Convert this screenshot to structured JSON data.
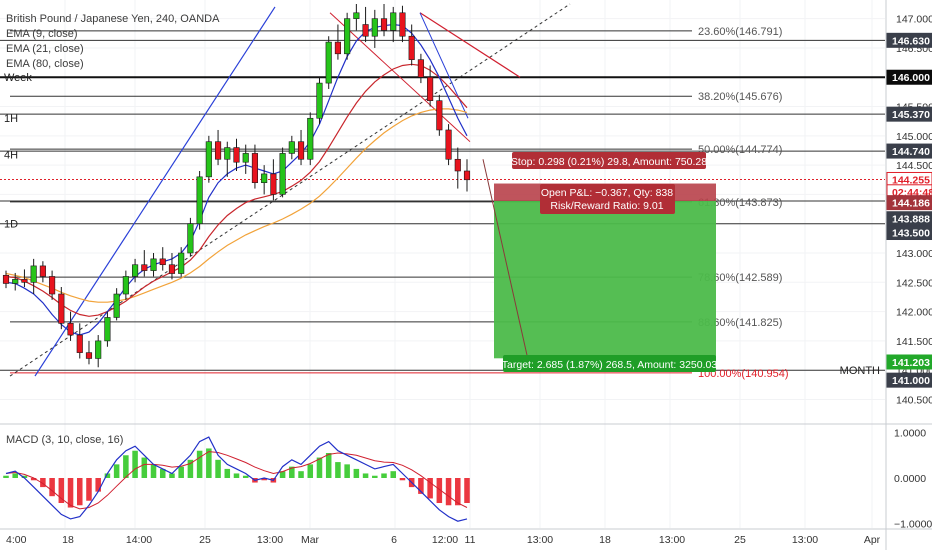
{
  "legend": {
    "title": "British Pound / Japanese Yen, 240, OANDA",
    "ema1": "EMA (9, close)",
    "ema2": "EMA (21, close)",
    "ema3": "EMA (80, close)"
  },
  "colors": {
    "up": "#26c41a",
    "down": "#e8141e",
    "ema9": "#2130c8",
    "ema21": "#c8262c",
    "ema80": "#f2a33a",
    "target_fill": "#4cbb4a",
    "stop_fill": "#b8414a"
  },
  "level_labels": [
    {
      "label": "Week",
      "price": 145.9
    },
    {
      "label": "1H",
      "price": 145.2
    },
    {
      "label": "4H",
      "price": 144.58
    },
    {
      "label": "1D",
      "price": 143.4
    },
    {
      "label": "MONTH",
      "price": 140.9
    }
  ],
  "fib_levels": [
    {
      "label": "23.60%(146.791)",
      "price": 146.791
    },
    {
      "label": "38.20%(145.676)",
      "price": 145.676
    },
    {
      "label": "50.00%(144.774)",
      "price": 144.774
    },
    {
      "label": "61.80%(143.873)",
      "price": 143.873
    },
    {
      "label": "78.60%(142.589)",
      "price": 142.589
    },
    {
      "label": "88.60%(141.825)",
      "price": 141.825
    },
    {
      "label": "100.00%(140.954)",
      "price": 140.954
    }
  ],
  "position": {
    "stop_label": "Stop: 0.298 (0.21%) 29.8, Amount: 750.28",
    "pnl_label": "Open P&L: −0.367, Qty: 838",
    "rr_label": "Risk/Reward Ratio: 9.01",
    "target_label": "Target: 2.685 (1.87%) 268.5, Amount: 3250.03",
    "entry": 143.888,
    "stop": 144.186,
    "target": 141.203
  },
  "macd": {
    "label": "MACD (3, 10, close, 16)"
  },
  "price_axis": {
    "ticks": [
      "147.000",
      "146.500",
      "146.000",
      "145.500",
      "145.000",
      "144.500",
      "144.000",
      "143.500",
      "143.000",
      "142.500",
      "142.000",
      "141.500",
      "141.000",
      "140.500"
    ],
    "tick_values": [
      147.0,
      146.5,
      146.0,
      145.5,
      145.0,
      144.5,
      144.0,
      143.5,
      143.0,
      142.5,
      142.0,
      141.5,
      141.0,
      140.5
    ],
    "tags": [
      {
        "text": "146.630",
        "price": 146.63,
        "bg": "#3a3f4a",
        "fg": "#ffffff"
      },
      {
        "text": "146.000",
        "price": 146.0,
        "bg": "#0b0b0b",
        "fg": "#ffffff"
      },
      {
        "text": "145.370",
        "price": 145.37,
        "bg": "#3a3f4a",
        "fg": "#ffffff"
      },
      {
        "text": "144.740",
        "price": 144.74,
        "bg": "#3a3f4a",
        "fg": "#ffffff"
      },
      {
        "text": "144.255",
        "price": 144.255,
        "bg": "#ffffff",
        "fg": "#e0202a",
        "border": "#e0202a"
      },
      {
        "text": "02:44:48",
        "price": 144.045,
        "bg": "#ffffff",
        "fg": "#e0202a",
        "border": "#e0202a"
      },
      {
        "text": "144.186",
        "price": 143.86,
        "bg": "#a3333b",
        "fg": "#ffffff"
      },
      {
        "text": "143.888",
        "price": 143.585,
        "bg": "#3a3f4a",
        "fg": "#ffffff"
      },
      {
        "text": "143.500",
        "price": 143.35,
        "bg": "#3a3f4a",
        "fg": "#ffffff"
      },
      {
        "text": "141.203",
        "price": 141.14,
        "bg": "#22a82a",
        "fg": "#ffffff"
      },
      {
        "text": "141.000",
        "price": 140.83,
        "bg": "#3a3f4a",
        "fg": "#ffffff"
      }
    ]
  },
  "macd_axis": {
    "ticks": [
      "1.0000",
      "0.0000",
      "−1.0000"
    ],
    "tick_values": [
      1.0,
      0.0,
      -1.0
    ]
  },
  "time_axis": {
    "labels": [
      "4:00",
      "18",
      "14:00",
      "25",
      "13:00",
      "Mar",
      "6",
      "12:00",
      "11",
      "13:00",
      "18",
      "13:00",
      "25",
      "13:00",
      "Apr"
    ]
  },
  "chart_data": {
    "type": "candlestick",
    "title": "British Pound / Japanese Yen, 240, OANDA",
    "price_range": [
      140.15,
      147.25
    ],
    "macd_range": [
      -1.1,
      1.1
    ],
    "candles": [
      [
        142.62,
        142.7,
        142.4,
        142.48
      ],
      [
        142.48,
        142.66,
        142.36,
        142.55
      ],
      [
        142.55,
        142.72,
        142.42,
        142.5
      ],
      [
        142.5,
        142.9,
        142.3,
        142.78
      ],
      [
        142.78,
        142.86,
        142.5,
        142.6
      ],
      [
        142.6,
        142.7,
        142.2,
        142.3
      ],
      [
        142.3,
        142.42,
        141.7,
        141.8
      ],
      [
        141.8,
        142.0,
        141.5,
        141.6
      ],
      [
        141.6,
        141.8,
        141.2,
        141.3
      ],
      [
        141.3,
        141.5,
        141.1,
        141.2
      ],
      [
        141.2,
        141.6,
        141.05,
        141.5
      ],
      [
        141.5,
        142.0,
        141.4,
        141.9
      ],
      [
        141.9,
        142.4,
        141.85,
        142.3
      ],
      [
        142.3,
        142.7,
        142.2,
        142.6
      ],
      [
        142.6,
        142.9,
        142.5,
        142.8
      ],
      [
        142.8,
        143.05,
        142.6,
        142.7
      ],
      [
        142.7,
        143.0,
        142.6,
        142.9
      ],
      [
        142.9,
        143.1,
        142.7,
        142.8
      ],
      [
        142.8,
        143.0,
        142.55,
        142.65
      ],
      [
        142.65,
        143.1,
        142.6,
        143.0
      ],
      [
        143.0,
        143.6,
        142.95,
        143.5
      ],
      [
        143.5,
        144.4,
        143.4,
        144.3
      ],
      [
        144.3,
        145.0,
        144.2,
        144.9
      ],
      [
        144.9,
        145.1,
        144.5,
        144.6
      ],
      [
        144.6,
        144.9,
        144.3,
        144.8
      ],
      [
        144.8,
        144.95,
        144.4,
        144.55
      ],
      [
        144.55,
        144.85,
        144.35,
        144.7
      ],
      [
        144.7,
        144.85,
        144.1,
        144.2
      ],
      [
        144.2,
        144.5,
        144.0,
        144.35
      ],
      [
        144.35,
        144.6,
        143.9,
        144.0
      ],
      [
        144.0,
        144.8,
        143.95,
        144.7
      ],
      [
        144.7,
        145.0,
        144.6,
        144.9
      ],
      [
        144.9,
        145.1,
        144.5,
        144.6
      ],
      [
        144.6,
        145.4,
        144.5,
        145.3
      ],
      [
        145.3,
        146.0,
        145.2,
        145.9
      ],
      [
        145.9,
        146.7,
        145.8,
        146.6
      ],
      [
        146.6,
        146.9,
        146.3,
        146.4
      ],
      [
        146.4,
        147.1,
        146.3,
        147.0
      ],
      [
        147.0,
        147.25,
        146.8,
        147.1
      ],
      [
        146.9,
        147.2,
        146.6,
        146.7
      ],
      [
        146.7,
        147.15,
        146.5,
        147.0
      ],
      [
        147.0,
        147.25,
        146.7,
        146.8
      ],
      [
        146.8,
        147.2,
        146.6,
        147.1
      ],
      [
        147.1,
        147.22,
        146.6,
        146.7
      ],
      [
        146.7,
        146.9,
        146.2,
        146.3
      ],
      [
        146.3,
        146.4,
        145.9,
        146.0
      ],
      [
        146.0,
        146.2,
        145.5,
        145.6
      ],
      [
        145.6,
        145.7,
        145.0,
        145.1
      ],
      [
        145.1,
        145.2,
        144.5,
        144.6
      ],
      [
        144.6,
        144.8,
        144.1,
        144.4
      ],
      [
        144.4,
        144.6,
        144.05,
        144.25
      ]
    ],
    "ema9": [
      142.5,
      142.48,
      142.4,
      142.3,
      142.15,
      141.95,
      141.78,
      141.65,
      141.6,
      141.65,
      141.8,
      142.0,
      142.2,
      142.42,
      142.6,
      142.72,
      142.8,
      142.85,
      142.9,
      143.0,
      143.2,
      143.55,
      143.95,
      144.2,
      144.35,
      144.45,
      144.5,
      144.45,
      144.4,
      144.35,
      144.4,
      144.55,
      144.7,
      144.9,
      145.2,
      145.6,
      146.0,
      146.35,
      146.62,
      146.78,
      146.85,
      146.88,
      146.9,
      146.88,
      146.75,
      146.55,
      146.3,
      146.0,
      145.65,
      145.3,
      145.0
    ],
    "ema21": [
      142.6,
      142.58,
      142.52,
      142.44,
      142.35,
      142.24,
      142.12,
      142.02,
      141.95,
      141.92,
      141.94,
      142.0,
      142.08,
      142.18,
      142.3,
      142.42,
      142.52,
      142.6,
      142.68,
      142.76,
      142.88,
      143.05,
      143.28,
      143.48,
      143.64,
      143.76,
      143.86,
      143.92,
      143.96,
      144.0,
      144.05,
      144.14,
      144.24,
      144.38,
      144.56,
      144.8,
      145.06,
      145.32,
      145.56,
      145.76,
      145.92,
      146.04,
      146.14,
      146.2,
      146.22,
      146.2,
      146.12,
      146.0,
      145.84,
      145.66,
      145.48
    ],
    "ema80": [
      142.65,
      142.62,
      142.58,
      142.52,
      142.46,
      142.4,
      142.33,
      142.27,
      142.22,
      142.18,
      142.16,
      142.16,
      142.18,
      142.21,
      142.26,
      142.32,
      142.38,
      142.44,
      142.5,
      142.57,
      142.66,
      142.77,
      142.9,
      143.02,
      143.13,
      143.22,
      143.31,
      143.38,
      143.45,
      143.51,
      143.58,
      143.66,
      143.75,
      143.85,
      143.97,
      144.12,
      144.28,
      144.45,
      144.62,
      144.78,
      144.92,
      145.05,
      145.16,
      145.26,
      145.34,
      145.4,
      145.44,
      145.46,
      145.46,
      145.44,
      145.4
    ],
    "macd_hist": [
      0.05,
      0.1,
      0.05,
      -0.05,
      -0.2,
      -0.4,
      -0.55,
      -0.65,
      -0.6,
      -0.5,
      -0.3,
      0.1,
      0.3,
      0.5,
      0.6,
      0.45,
      0.3,
      0.2,
      0.1,
      0.25,
      0.4,
      0.6,
      0.65,
      0.4,
      0.2,
      0.1,
      0.05,
      -0.1,
      -0.05,
      -0.1,
      0.15,
      0.25,
      0.15,
      0.3,
      0.45,
      0.55,
      0.35,
      0.3,
      0.2,
      0.1,
      0.05,
      0.1,
      0.15,
      -0.05,
      -0.2,
      -0.35,
      -0.45,
      -0.55,
      -0.6,
      -0.6,
      -0.55
    ],
    "macd_line": [
      0.1,
      0.15,
      0.0,
      -0.2,
      -0.4,
      -0.6,
      -0.8,
      -0.9,
      -0.85,
      -0.6,
      -0.3,
      0.1,
      0.4,
      0.6,
      0.7,
      0.5,
      0.3,
      0.2,
      0.1,
      0.3,
      0.5,
      0.8,
      0.9,
      0.5,
      0.3,
      0.2,
      0.1,
      -0.05,
      0.0,
      -0.05,
      0.25,
      0.4,
      0.3,
      0.5,
      0.7,
      0.8,
      0.6,
      0.5,
      0.4,
      0.3,
      0.2,
      0.25,
      0.3,
      0.1,
      -0.1,
      -0.3,
      -0.5,
      -0.7,
      -0.85,
      -0.95,
      -0.9
    ],
    "macd_signal": [
      0.1,
      0.12,
      0.08,
      0.0,
      -0.12,
      -0.28,
      -0.45,
      -0.6,
      -0.68,
      -0.65,
      -0.55,
      -0.38,
      -0.18,
      0.02,
      0.2,
      0.3,
      0.3,
      0.28,
      0.24,
      0.26,
      0.32,
      0.45,
      0.58,
      0.56,
      0.5,
      0.42,
      0.34,
      0.24,
      0.16,
      0.1,
      0.14,
      0.22,
      0.25,
      0.32,
      0.42,
      0.52,
      0.55,
      0.53,
      0.5,
      0.44,
      0.38,
      0.35,
      0.34,
      0.28,
      0.18,
      0.05,
      -0.1,
      -0.25,
      -0.4,
      -0.55,
      -0.65
    ]
  }
}
